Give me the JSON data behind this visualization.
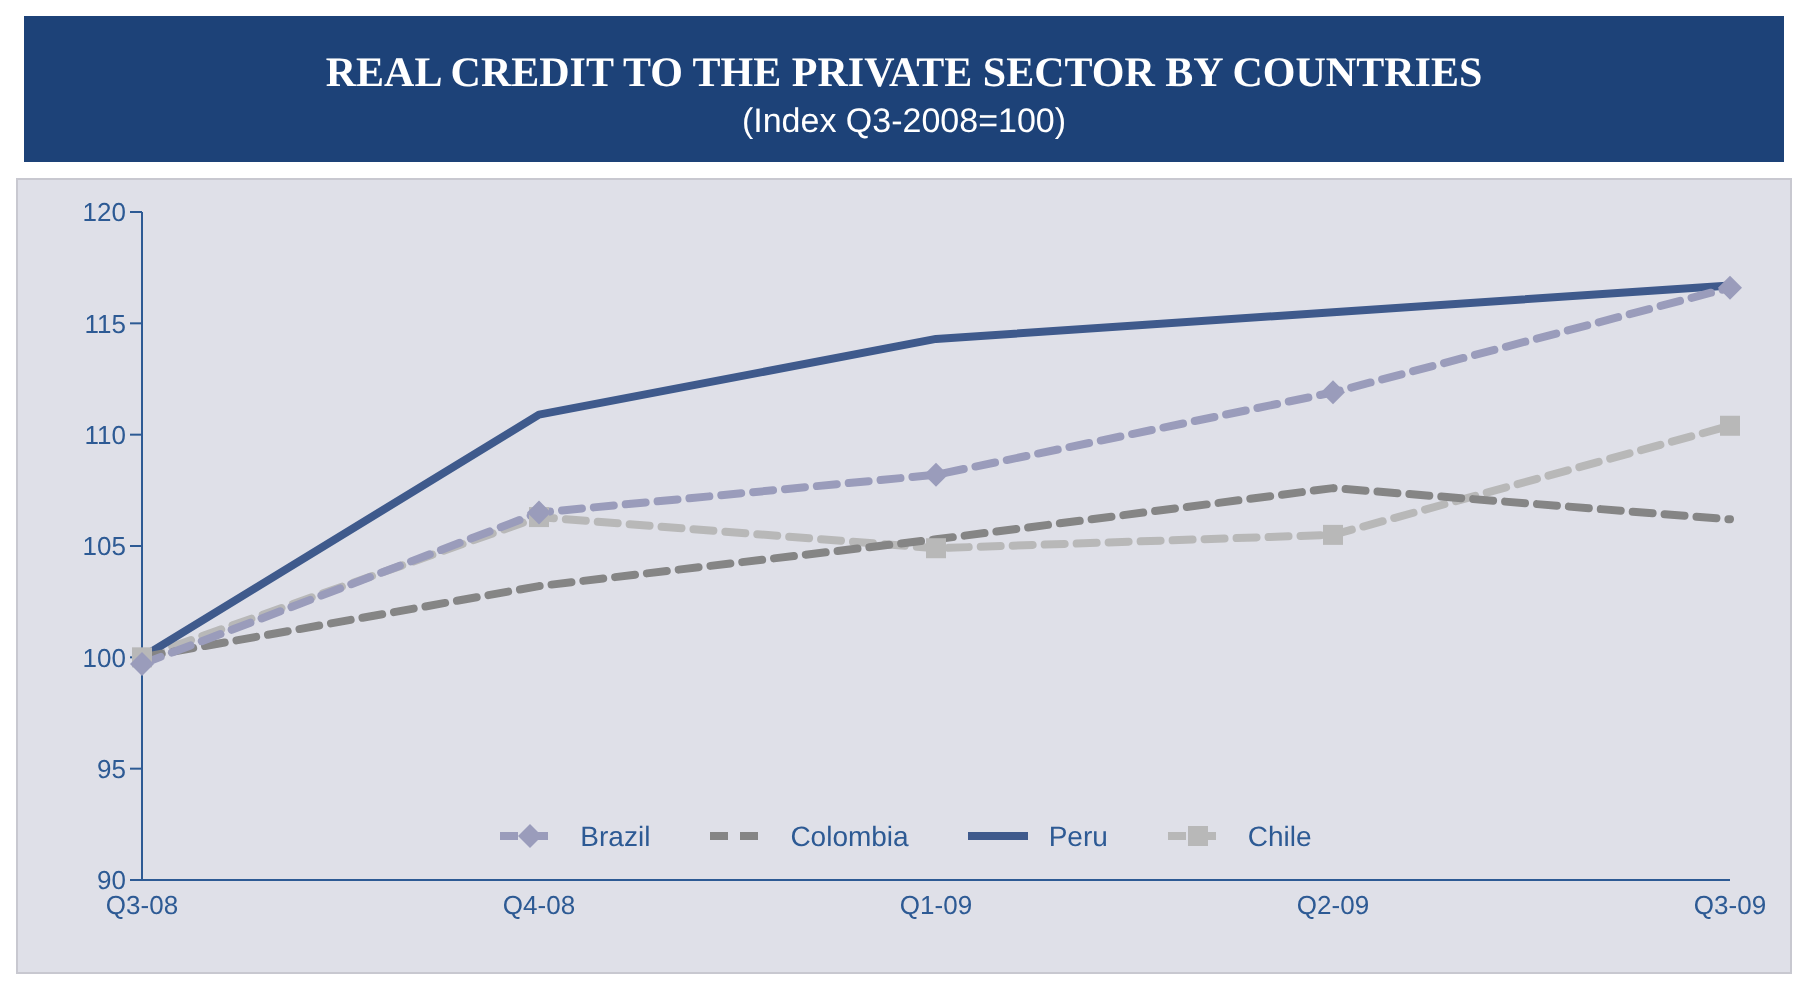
{
  "chart_data": {
    "type": "line",
    "title": "REAL CREDIT TO THE PRIVATE SECTOR BY COUNTRIES",
    "subtitle": "(Index Q3-2008=100)",
    "categories": [
      "Q3-08",
      "Q4-08",
      "Q1-09",
      "Q2-09",
      "Q3-09"
    ],
    "series": [
      {
        "name": "Brazil",
        "color": "#9a9cbb",
        "marker": "diamond",
        "line_style": "dashed",
        "values": [
          99.7,
          106.5,
          108.2,
          111.9,
          116.6
        ]
      },
      {
        "name": "Colombia",
        "color": "#858585",
        "marker": "none",
        "line_style": "dashed",
        "values": [
          100,
          103.2,
          105.3,
          107.6,
          106.2
        ]
      },
      {
        "name": "Peru",
        "color": "#3f5a8c",
        "marker": "none",
        "line_style": "solid",
        "values": [
          100,
          110.9,
          114.3,
          115.5,
          116.7
        ]
      },
      {
        "name": "Chile",
        "color": "#b8b8b8",
        "marker": "square",
        "line_style": "dashed",
        "values": [
          100,
          106.3,
          104.9,
          105.5,
          110.4
        ]
      }
    ],
    "ylim": [
      90,
      120
    ],
    "yticks": [
      90,
      95,
      100,
      105,
      110,
      115,
      120
    ],
    "grid": false,
    "legend": "bottom"
  }
}
